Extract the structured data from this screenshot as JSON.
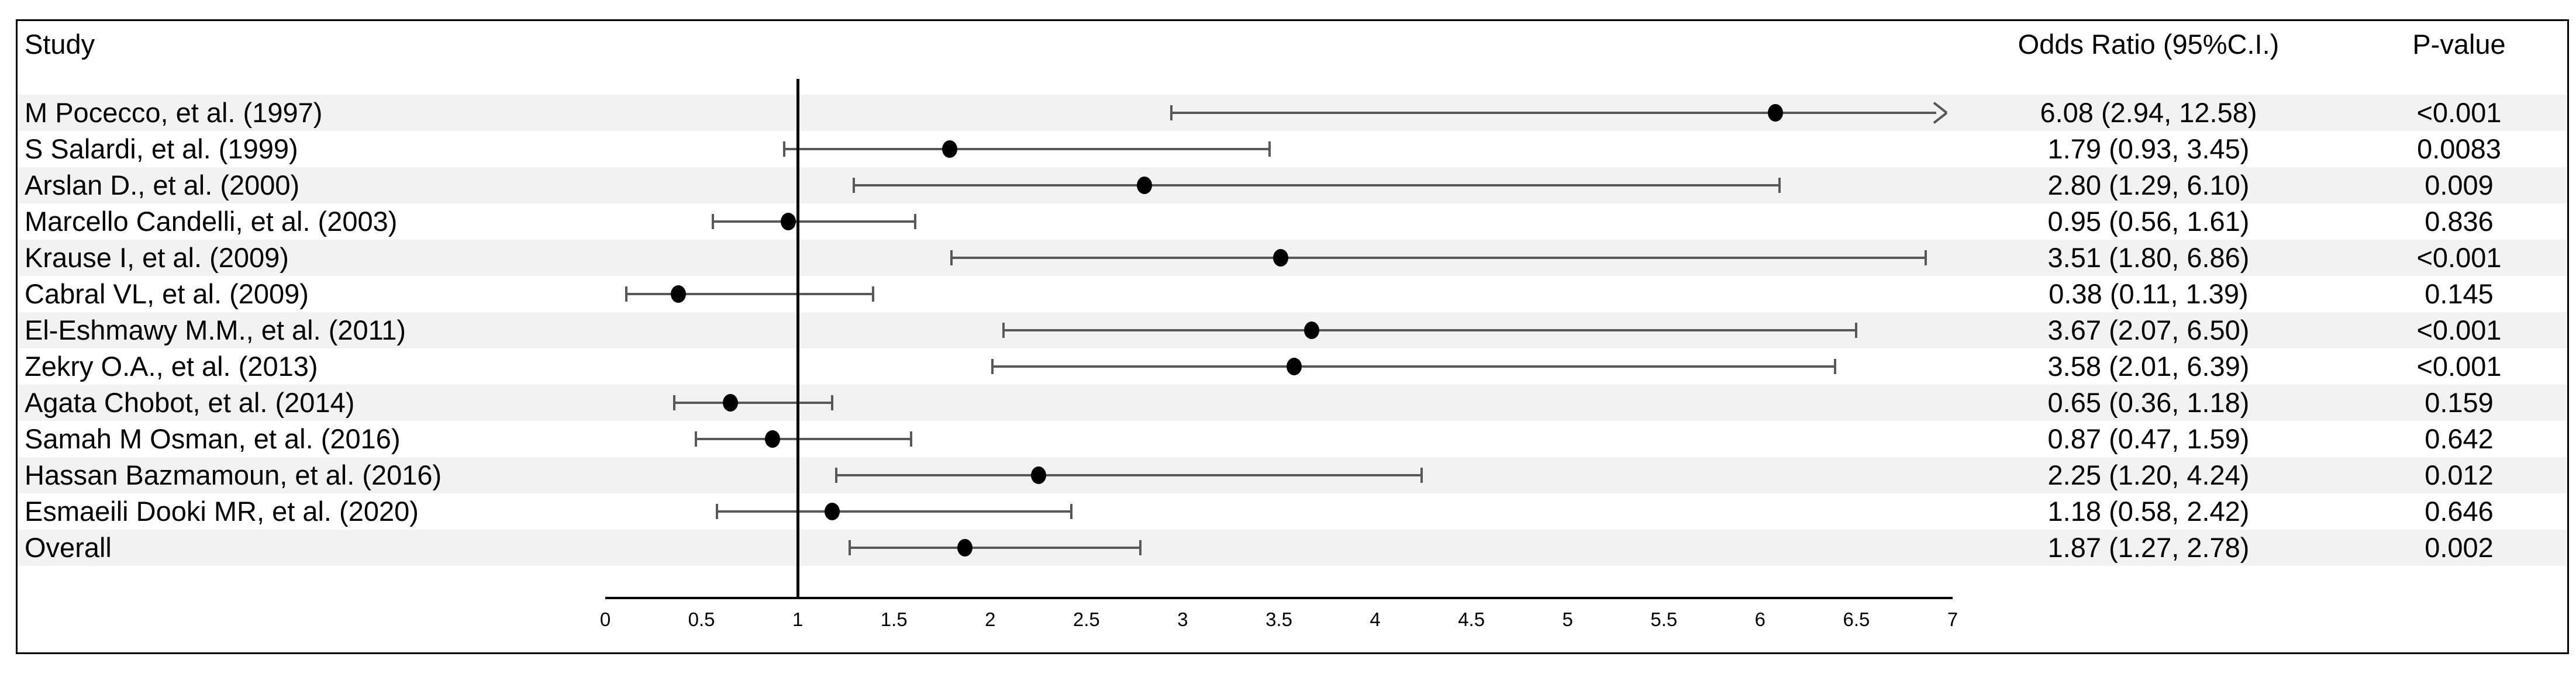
{
  "header": {
    "study": "Study",
    "odds_ratio": "Odds Ratio (95%C.I.)",
    "p_value": "P-value"
  },
  "chart_data": {
    "type": "forest",
    "title": "",
    "xlabel": "",
    "x_axis": {
      "min": 0,
      "max": 7,
      "ticks": [
        "0",
        "0.5",
        "1",
        "1.5",
        "2",
        "2.5",
        "3",
        "3.5",
        "4",
        "4.5",
        "5",
        "5.5",
        "6",
        "6.5",
        "7"
      ],
      "reference_line": 1
    },
    "legend": "none",
    "grid": false,
    "rows": [
      {
        "study": "M Pocecco, et al. (1997)",
        "or": 6.08,
        "ci_low": 2.94,
        "ci_high": 12.58,
        "or_text": "6.08 (2.94, 12.58)",
        "p_value": "<0.001",
        "arrow_right": true
      },
      {
        "study": "S Salardi, et al. (1999)",
        "or": 1.79,
        "ci_low": 0.93,
        "ci_high": 3.45,
        "or_text": "1.79 (0.93, 3.45)",
        "p_value": "0.0083",
        "arrow_right": false
      },
      {
        "study": "Arslan D., et al. (2000)",
        "or": 2.8,
        "ci_low": 1.29,
        "ci_high": 6.1,
        "or_text": "2.80 (1.29, 6.10)",
        "p_value": "0.009",
        "arrow_right": false
      },
      {
        "study": "Marcello Candelli, et al. (2003)",
        "or": 0.95,
        "ci_low": 0.56,
        "ci_high": 1.61,
        "or_text": "0.95 (0.56, 1.61)",
        "p_value": "0.836",
        "arrow_right": false
      },
      {
        "study": "Krause I, et al. (2009)",
        "or": 3.51,
        "ci_low": 1.8,
        "ci_high": 6.86,
        "or_text": "3.51 (1.80, 6.86)",
        "p_value": "<0.001",
        "arrow_right": false
      },
      {
        "study": "Cabral VL, et al. (2009)",
        "or": 0.38,
        "ci_low": 0.11,
        "ci_high": 1.39,
        "or_text": "0.38 (0.11, 1.39)",
        "p_value": "0.145",
        "arrow_right": false
      },
      {
        "study": "El-Eshmawy M.M., et al. (2011)",
        "or": 3.67,
        "ci_low": 2.07,
        "ci_high": 6.5,
        "or_text": "3.67 (2.07, 6.50)",
        "p_value": "<0.001",
        "arrow_right": false
      },
      {
        "study": "Zekry O.A., et al. (2013)",
        "or": 3.58,
        "ci_low": 2.01,
        "ci_high": 6.39,
        "or_text": "3.58 (2.01, 6.39)",
        "p_value": "<0.001",
        "arrow_right": false
      },
      {
        "study": "Agata Chobot, et al. (2014)",
        "or": 0.65,
        "ci_low": 0.36,
        "ci_high": 1.18,
        "or_text": "0.65 (0.36, 1.18)",
        "p_value": "0.159",
        "arrow_right": false
      },
      {
        "study": "Samah M Osman, et al. (2016)",
        "or": 0.87,
        "ci_low": 0.47,
        "ci_high": 1.59,
        "or_text": "0.87 (0.47, 1.59)",
        "p_value": "0.642",
        "arrow_right": false
      },
      {
        "study": "Hassan Bazmamoun, et al. (2016)",
        "or": 2.25,
        "ci_low": 1.2,
        "ci_high": 4.24,
        "or_text": "2.25 (1.20, 4.24)",
        "p_value": "0.012",
        "arrow_right": false
      },
      {
        "study": "Esmaeili Dooki MR, et al. (2020)",
        "or": 1.18,
        "ci_low": 0.58,
        "ci_high": 2.42,
        "or_text": "1.18 (0.58, 2.42)",
        "p_value": "0.646",
        "arrow_right": false
      },
      {
        "study": "Overall",
        "or": 1.87,
        "ci_low": 1.27,
        "ci_high": 2.78,
        "or_text": "1.87 (1.27, 2.78)",
        "p_value": "0.002",
        "arrow_right": false,
        "is_summary": true
      }
    ]
  },
  "colors": {
    "stripe": "#f2f2f2",
    "ci_line": "#58585a",
    "marker": "#000000",
    "frame_border": "#000000",
    "text": "#000000"
  }
}
